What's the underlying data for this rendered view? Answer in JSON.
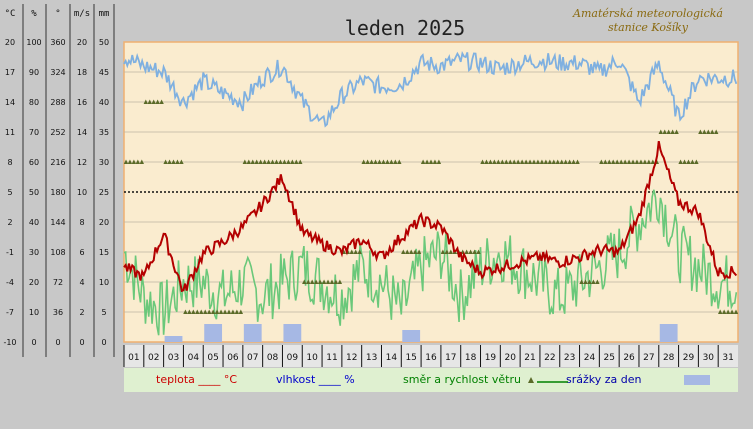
{
  "chart_data": {
    "type": "line",
    "title": "leden 2025",
    "station": {
      "line1": "Amatérská meteorologická",
      "line2": "stanice Košíky"
    },
    "axes": {
      "temperature": {
        "unit": "°C",
        "range": [
          -10,
          20
        ],
        "ticks": [
          "20",
          "17",
          "14",
          "11",
          "8",
          "5",
          "2",
          "-1",
          "-4",
          "-7",
          "-10"
        ]
      },
      "humidity": {
        "unit": "%",
        "range": [
          0,
          100
        ],
        "ticks": [
          "100",
          "90",
          "80",
          "70",
          "60",
          "50",
          "40",
          "30",
          "20",
          "10",
          "0"
        ]
      },
      "wind_direction": {
        "unit": "°",
        "range": [
          0,
          360
        ],
        "ticks": [
          "360",
          "324",
          "288",
          "252",
          "216",
          "180",
          "144",
          "108",
          "72",
          "36",
          "0"
        ]
      },
      "wind_speed": {
        "unit": "m/s",
        "range": [
          0,
          20
        ],
        "ticks": [
          "20",
          "18",
          "16",
          "14",
          "12",
          "10",
          "8",
          "6",
          "4",
          "2",
          "0"
        ]
      },
      "precipitation": {
        "unit": "mm",
        "range": [
          0,
          50
        ],
        "ticks": [
          "50",
          "45",
          "40",
          "35",
          "30",
          "25",
          "20",
          "15",
          "10",
          "5",
          "0"
        ]
      }
    },
    "x_days": [
      "01",
      "02",
      "03",
      "04",
      "05",
      "06",
      "07",
      "08",
      "09",
      "10",
      "11",
      "12",
      "13",
      "14",
      "15",
      "16",
      "17",
      "18",
      "19",
      "20",
      "21",
      "22",
      "23",
      "24",
      "25",
      "26",
      "27",
      "28",
      "29",
      "30",
      "31"
    ],
    "legend": [
      {
        "label": "teplota ____ °C",
        "color": "#cc0000"
      },
      {
        "label": "vlhkost ____ %",
        "color": "#0000cc"
      },
      {
        "label": "směr a rychlost větru",
        "color": "#008000"
      },
      {
        "label": "srážky za den",
        "color": "#0000aa"
      }
    ],
    "series": {
      "temperature": {
        "color": "#b30000",
        "days": [
          1,
          2,
          3,
          4,
          5,
          6,
          7,
          8,
          9,
          10,
          11,
          12,
          13,
          14,
          15,
          16,
          17,
          18,
          19,
          20,
          21,
          22,
          23,
          24,
          25,
          26,
          27,
          28,
          29,
          30,
          31
        ],
        "values": [
          -2.5,
          -3.5,
          0.8,
          -5,
          -1.2,
          0,
          1.5,
          3.8,
          6.5,
          1,
          -0.2,
          -1,
          0.2,
          -1.5,
          0.5,
          2.2,
          1.5,
          -1.5,
          -3,
          -2.5,
          -2,
          -1.5,
          -2,
          -1.5,
          -0.8,
          -1,
          2.5,
          9.5,
          4,
          3,
          -3
        ]
      },
      "humidity": {
        "color": "#7fb0e0",
        "days": [
          1,
          2,
          3,
          4,
          5,
          6,
          7,
          8,
          9,
          10,
          11,
          12,
          13,
          14,
          15,
          16,
          17,
          18,
          19,
          20,
          21,
          22,
          23,
          24,
          25,
          26,
          27,
          28,
          29,
          30,
          31
        ],
        "values": [
          95,
          92,
          90,
          80,
          87,
          83,
          80,
          88,
          92,
          80,
          72,
          82,
          87,
          85,
          86,
          93,
          92,
          94,
          93,
          91,
          93,
          94,
          93,
          93,
          90,
          94,
          80,
          93,
          75,
          88,
          88
        ]
      },
      "wind_speed": {
        "color": "#6ac87a",
        "days": [
          1,
          2,
          3,
          4,
          5,
          6,
          7,
          8,
          9,
          10,
          11,
          12,
          13,
          14,
          15,
          16,
          17,
          18,
          19,
          20,
          21,
          22,
          23,
          24,
          25,
          26,
          27,
          28,
          29,
          30,
          31
        ],
        "values": [
          6,
          3,
          2,
          4,
          4,
          3,
          4,
          3,
          4,
          5,
          4,
          3,
          5,
          4,
          2,
          5,
          6,
          3,
          5,
          6,
          5,
          4,
          3,
          4,
          5,
          6,
          8,
          10,
          6,
          5,
          4
        ]
      },
      "wind_direction": {
        "color": "#5a6a28",
        "days": [
          1,
          2,
          3,
          4,
          5,
          6,
          7,
          8,
          9,
          10,
          11,
          12,
          13,
          14,
          15,
          16,
          17,
          18,
          19,
          20,
          21,
          22,
          23,
          24,
          25,
          26,
          27,
          28,
          29,
          30,
          31
        ],
        "values": [
          216,
          288,
          216,
          36,
          36,
          36,
          216,
          216,
          216,
          72,
          72,
          108,
          216,
          216,
          108,
          216,
          108,
          108,
          216,
          216,
          216,
          216,
          216,
          72,
          216,
          216,
          216,
          252,
          216,
          252,
          36
        ]
      },
      "precipitation": {
        "color": "#a6b8e4",
        "days": [
          3,
          5,
          7,
          9,
          15,
          28
        ],
        "values": [
          1,
          3,
          3,
          3,
          2,
          3
        ]
      }
    }
  }
}
